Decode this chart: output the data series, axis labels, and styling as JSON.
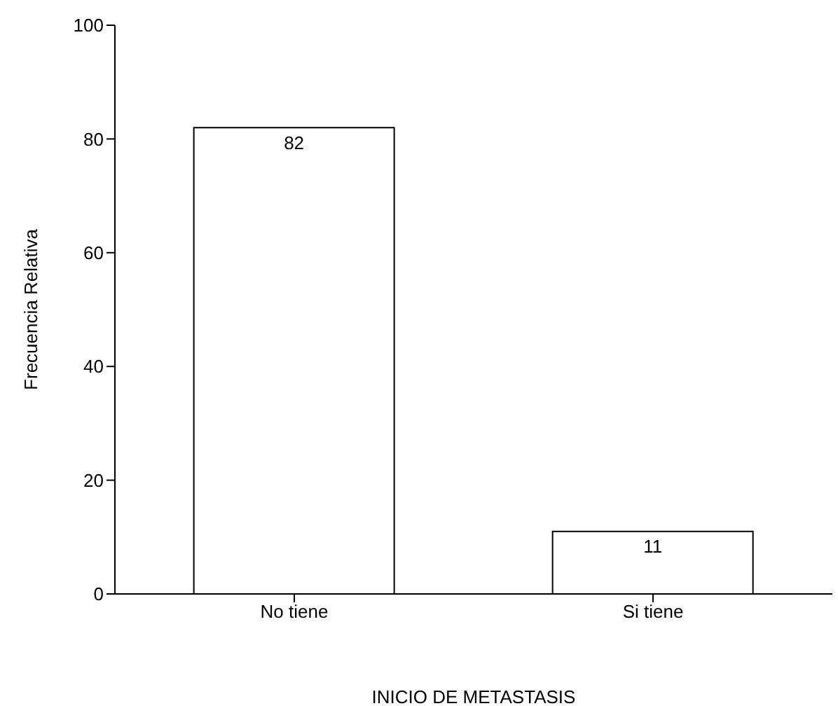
{
  "chart_data": {
    "type": "bar",
    "xlabel": "INICIO DE METASTASIS",
    "ylabel": "Frecuencia Relativa",
    "categories": [
      "No tiene",
      "Si tiene"
    ],
    "values": [
      82,
      11
    ],
    "color": "#ffffff",
    "ylim": [
      0,
      100
    ],
    "yticks": [
      0,
      20,
      40,
      60,
      80,
      100
    ],
    "grid": false,
    "data_labels": true
  }
}
